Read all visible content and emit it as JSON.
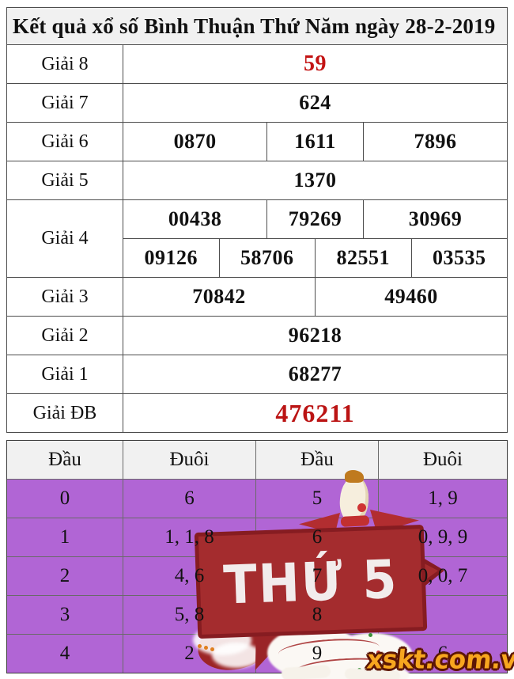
{
  "title": "Kết quả xổ số Bình Thuận Thứ Năm ngày 28-2-2019",
  "results_table": {
    "rows": [
      {
        "label": "Giải 8",
        "values": [
          "59"
        ]
      },
      {
        "label": "Giải 7",
        "values": [
          "624"
        ]
      },
      {
        "label": "Giải 6",
        "values": [
          "0870",
          "1611",
          "7896"
        ]
      },
      {
        "label": "Giải 5",
        "values": [
          "1370"
        ]
      },
      {
        "label": "Giải 4",
        "values_row1": [
          "00438",
          "79269",
          "30969"
        ],
        "values_row2": [
          "09126",
          "58706",
          "82551",
          "03535"
        ]
      },
      {
        "label": "Giải 3",
        "values": [
          "70842",
          "49460"
        ]
      },
      {
        "label": "Giải 2",
        "values": [
          "96218"
        ]
      },
      {
        "label": "Giải 1",
        "values": [
          "68277"
        ]
      },
      {
        "label": "Giải ĐB",
        "values": [
          "476211"
        ]
      }
    ]
  },
  "head_tail_table": {
    "headers": [
      "Đầu",
      "Đuôi",
      "Đầu",
      "Đuôi"
    ],
    "rows": [
      [
        "0",
        "6",
        "5",
        "1, 9"
      ],
      [
        "1",
        "1, 1, 8",
        "6",
        "0, 9, 9"
      ],
      [
        "2",
        "4, 6",
        "7",
        "0, 0, 7"
      ],
      [
        "3",
        "5, 8",
        "8",
        ""
      ],
      [
        "4",
        "2",
        "9",
        "6"
      ]
    ]
  },
  "overlay": {
    "banner_text": "THỨ 5",
    "watermark": "xskt.com.vn"
  },
  "colors": {
    "highlight_red": "#c31313",
    "special_red": "#bb1414",
    "purple_row": "#b165d5",
    "header_gray": "#f1f1f1",
    "banner_red": "#a42c2e",
    "banner_border": "#861c21",
    "watermark_orange": "#f7a61f",
    "watermark_outline": "#5c1605"
  }
}
